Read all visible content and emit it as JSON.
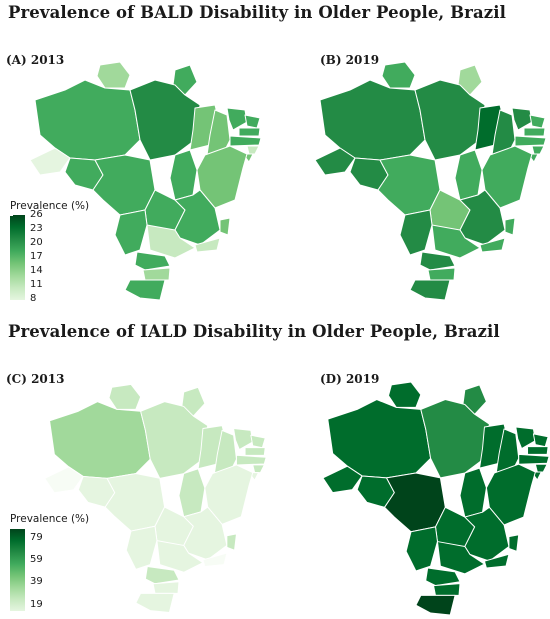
{
  "titles": {
    "bald": "Prevalence of BALD Disability in Older People, Brazil",
    "iald": "Prevalence of IALD Disability in Older People, Brazil"
  },
  "panels": {
    "a": "(A) 2013",
    "b": "(B) 2019",
    "c": "(C) 2013",
    "d": "(D) 2019"
  },
  "legend_bald": {
    "title": "Prevalence (%)",
    "ticks": [
      "26",
      "23",
      "20",
      "17",
      "14",
      "11",
      "8"
    ],
    "range": [
      8,
      26
    ],
    "color_low": "#e5f5e0",
    "color_high": "#00441b"
  },
  "legend_iald": {
    "title": "Prevalence (%)",
    "ticks": [
      "79",
      "59",
      "39",
      "19"
    ],
    "range": [
      19,
      79
    ],
    "color_low": "#e5f5e0",
    "color_high": "#00441b"
  },
  "colors": {
    "scale": [
      "#f7fcf5",
      "#e5f5e0",
      "#c7e9c0",
      "#a1d99b",
      "#74c476",
      "#41ab5d",
      "#238b45",
      "#006d2c",
      "#00441b"
    ],
    "border": "#ffffff"
  }
}
